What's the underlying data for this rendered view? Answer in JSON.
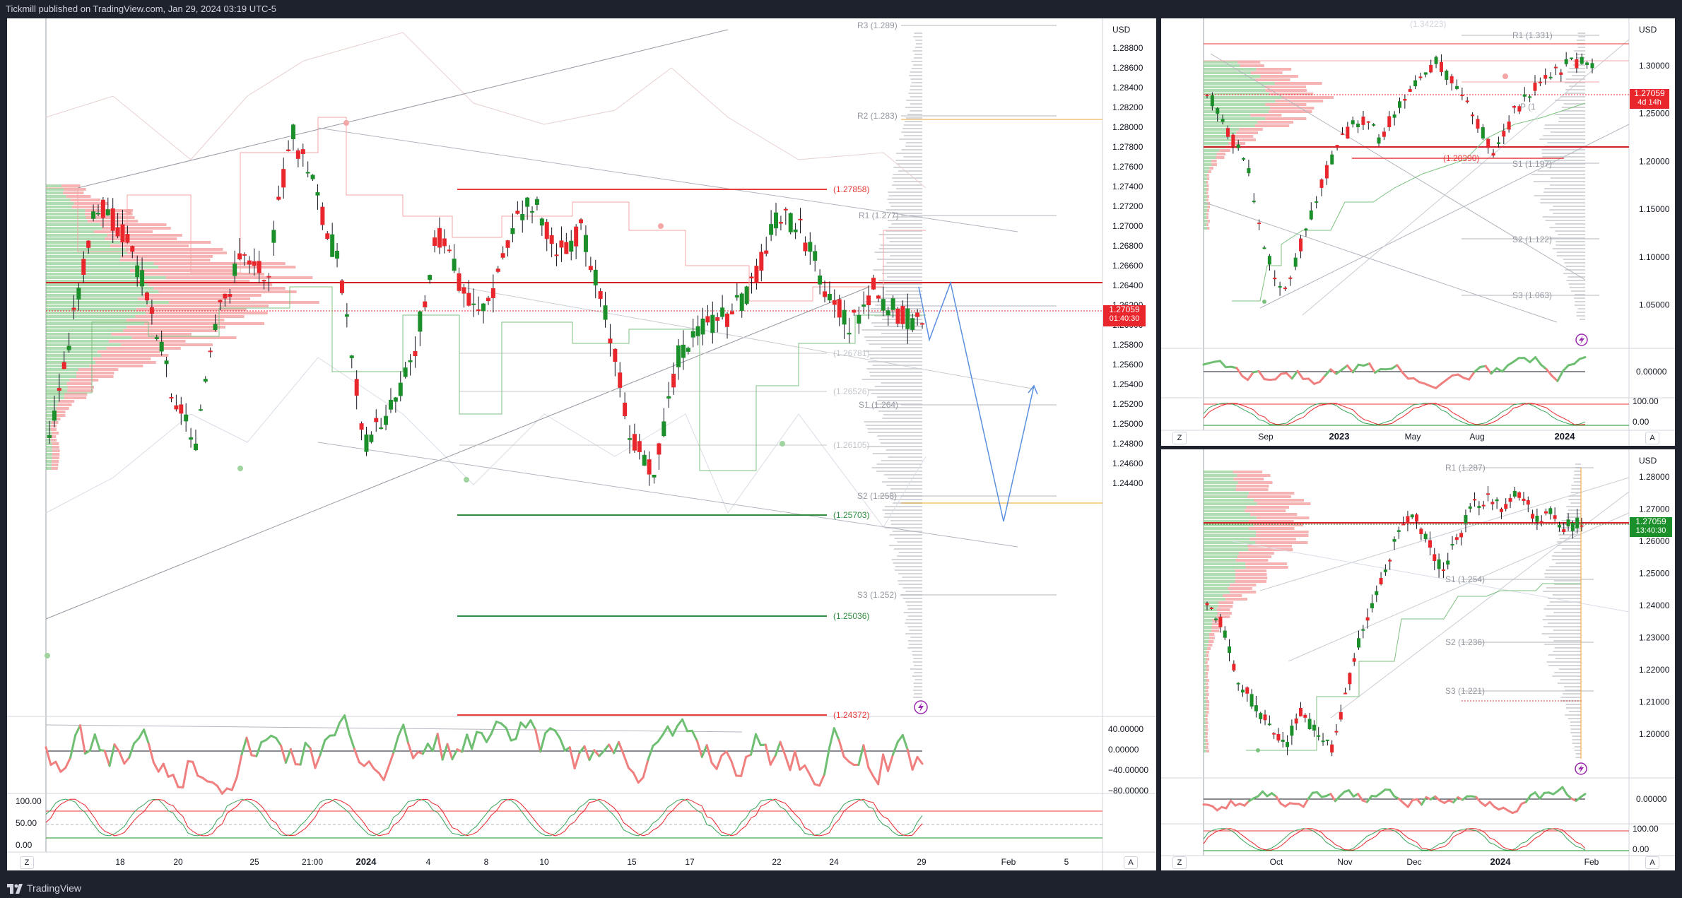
{
  "header": {
    "publish_text": "Tickmill published on TradingView.com, Jan 29, 2024 03:19 UTC-5"
  },
  "footer": {
    "brand": "TradingView"
  },
  "colors": {
    "up": "#1b8f2a",
    "down": "#e8262b",
    "support": "#2e8b3e",
    "resistance": "#e83a3a",
    "projection": "#5b8fe0"
  },
  "main": {
    "currency": "USD",
    "price_ticks": [
      "1.28800",
      "1.28600",
      "1.28400",
      "1.28200",
      "1.28000",
      "1.27800",
      "1.27600",
      "1.27400",
      "1.27200",
      "1.27000",
      "1.26800",
      "1.26600",
      "1.26400",
      "1.26200",
      "1.26000",
      "1.25800",
      "1.25600",
      "1.25400",
      "1.25200",
      "1.25000",
      "1.24800",
      "1.24600",
      "1.24400"
    ],
    "date_ticks": [
      "18",
      "20",
      "25",
      "21:00",
      "2024",
      "4",
      "8",
      "10",
      "15",
      "17",
      "22",
      "24",
      "29",
      "Feb",
      "5"
    ],
    "price_badge": {
      "price": "1.27059",
      "timer": "01:40:30"
    },
    "levels": {
      "r3": "R3 (1.289)",
      "r2": "R2 (1.283)",
      "r1": "R1 (1.277)",
      "s1": "S1 (1.264)",
      "s2": "S2 (1.258)",
      "s3": "S3 (1.252)",
      "res1": "(1.27858)",
      "res2": "(1.24372)",
      "sup1": "(1.25703)",
      "sup2": "(1.25036)",
      "faint1": "(1.26781)",
      "faint2": "(1.26526)",
      "faint3": "(1.26105)"
    },
    "ind1_ticks": [
      "40.00000",
      "0.00000",
      "−40.00000",
      "−80.00000"
    ],
    "ind2_ticks": [
      "100.00",
      "50.00",
      "0.00"
    ],
    "corner_left": "Z",
    "corner_right": "A"
  },
  "weekly": {
    "currency": "USD",
    "price_ticks": [
      "1.30000",
      "1.25000",
      "1.20000",
      "1.15000",
      "1.10000",
      "1.05000"
    ],
    "date_ticks": [
      "Sep",
      "2023",
      "May",
      "Aug",
      "2024"
    ],
    "price_badge": {
      "price": "1.27059",
      "timer": "4d 14h"
    },
    "levels": {
      "r1": "R1 (1.331)",
      "p": "P (1",
      "s1": "S1 (1.197)",
      "s2": "S2 (1.122)",
      "s3": "S3 (1.063)",
      "res": "(1.20390)",
      "top": "(1.34223)"
    },
    "ind1_ticks": [
      "0.00000"
    ],
    "ind2_ticks": [
      "100.00",
      "0.00"
    ],
    "corner_left": "Z",
    "corner_right": "A"
  },
  "daily": {
    "currency": "USD",
    "price_ticks": [
      "1.28000",
      "1.27000",
      "1.26000",
      "1.25000",
      "1.24000",
      "1.23000",
      "1.22000",
      "1.21000",
      "1.20000"
    ],
    "date_ticks": [
      "Oct",
      "Nov",
      "Dec",
      "2024",
      "Feb"
    ],
    "price_badge": {
      "price": "1.27059",
      "timer": "13:40:30"
    },
    "levels": {
      "r1": "R1 (1.287)",
      "s1": "S1 (1.254)",
      "s2": "S2 (1.236)",
      "s3": "S3 (1.221)"
    },
    "ind1_ticks": [
      "0.00000"
    ],
    "ind2_ticks": [
      "100.00",
      "0.00"
    ],
    "corner_left": "Z",
    "corner_right": "A"
  }
}
